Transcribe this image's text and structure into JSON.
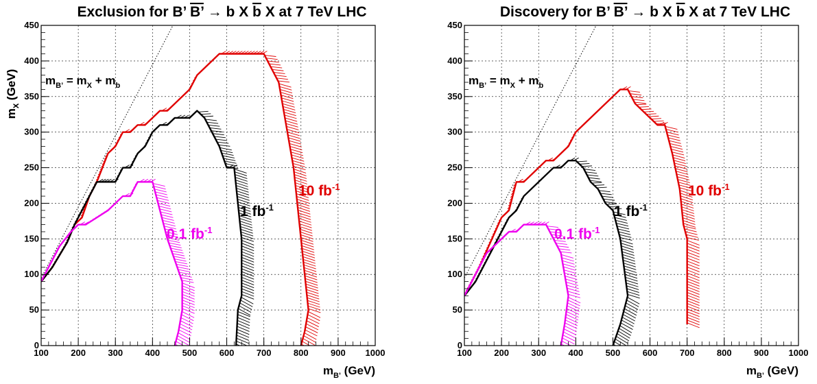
{
  "chart_data": [
    {
      "type": "line",
      "title": "Exclusion for B’ B̅’ → b X b̅ X at 7 TeV LHC",
      "xlabel": "m_B’ (GeV)",
      "ylabel": "m_X (GeV)",
      "xlim": [
        100,
        1000
      ],
      "ylim": [
        0,
        450
      ],
      "x_ticks": [
        100,
        200,
        300,
        400,
        500,
        600,
        700,
        800,
        900,
        1000
      ],
      "y_ticks": [
        0,
        50,
        100,
        150,
        200,
        250,
        300,
        350,
        400,
        450
      ],
      "grid": true,
      "diagonal_label": "m_B’ = m_X + m_b",
      "series": [
        {
          "name": "10 fb⁻¹",
          "color": "#e00000",
          "points": [
            [
              100,
              90
            ],
            [
              130,
              110
            ],
            [
              170,
              145
            ],
            [
              190,
              170
            ],
            [
              210,
              180
            ],
            [
              230,
              210
            ],
            [
              250,
              230
            ],
            [
              280,
              270
            ],
            [
              300,
              280
            ],
            [
              320,
              300
            ],
            [
              340,
              300
            ],
            [
              360,
              310
            ],
            [
              380,
              310
            ],
            [
              400,
              320
            ],
            [
              420,
              330
            ],
            [
              440,
              330
            ],
            [
              460,
              340
            ],
            [
              480,
              350
            ],
            [
              500,
              360
            ],
            [
              520,
              380
            ],
            [
              540,
              390
            ],
            [
              560,
              400
            ],
            [
              580,
              410
            ],
            [
              600,
              410
            ],
            [
              650,
              410
            ],
            [
              700,
              410
            ],
            [
              720,
              390
            ],
            [
              740,
              370
            ],
            [
              760,
              310
            ],
            [
              780,
              250
            ],
            [
              800,
              150
            ],
            [
              820,
              50
            ],
            [
              810,
              20
            ],
            [
              800,
              0
            ]
          ]
        },
        {
          "name": "1 fb⁻¹",
          "color": "#000000",
          "points": [
            [
              100,
              90
            ],
            [
              130,
              110
            ],
            [
              170,
              145
            ],
            [
              190,
              170
            ],
            [
              210,
              190
            ],
            [
              230,
              210
            ],
            [
              250,
              230
            ],
            [
              280,
              230
            ],
            [
              300,
              230
            ],
            [
              320,
              250
            ],
            [
              340,
              250
            ],
            [
              360,
              270
            ],
            [
              380,
              280
            ],
            [
              400,
              300
            ],
            [
              420,
              310
            ],
            [
              440,
              310
            ],
            [
              460,
              320
            ],
            [
              480,
              320
            ],
            [
              500,
              320
            ],
            [
              520,
              330
            ],
            [
              540,
              320
            ],
            [
              560,
              300
            ],
            [
              580,
              280
            ],
            [
              600,
              250
            ],
            [
              620,
              250
            ],
            [
              630,
              200
            ],
            [
              640,
              150
            ],
            [
              640,
              70
            ],
            [
              630,
              50
            ],
            [
              625,
              0
            ]
          ]
        },
        {
          "name": "0.1 fb⁻¹",
          "color": "#ee00ee",
          "points": [
            [
              100,
              90
            ],
            [
              120,
              110
            ],
            [
              150,
              140
            ],
            [
              180,
              160
            ],
            [
              200,
              170
            ],
            [
              220,
              170
            ],
            [
              250,
              180
            ],
            [
              280,
              190
            ],
            [
              300,
              200
            ],
            [
              320,
              210
            ],
            [
              340,
              210
            ],
            [
              360,
              230
            ],
            [
              380,
              230
            ],
            [
              400,
              230
            ],
            [
              420,
              190
            ],
            [
              440,
              150
            ],
            [
              460,
              120
            ],
            [
              480,
              90
            ],
            [
              480,
              50
            ],
            [
              470,
              20
            ],
            [
              460,
              0
            ]
          ]
        }
      ]
    },
    {
      "type": "line",
      "title": "Discovery for B’ B̅’ → b X b̅ X at 7 TeV LHC",
      "xlabel": "m_B’ (GeV)",
      "ylabel": "m_X (GeV)",
      "xlim": [
        100,
        1000
      ],
      "ylim": [
        0,
        450
      ],
      "x_ticks": [
        100,
        200,
        300,
        400,
        500,
        600,
        700,
        800,
        900,
        1000
      ],
      "y_ticks": [
        0,
        50,
        100,
        150,
        200,
        250,
        300,
        350,
        400,
        450
      ],
      "grid": true,
      "diagonal_label": "m_B’ = m_X + m_b",
      "series": [
        {
          "name": "10 fb⁻¹",
          "color": "#e00000",
          "points": [
            [
              100,
              70
            ],
            [
              140,
              110
            ],
            [
              170,
              145
            ],
            [
              200,
              180
            ],
            [
              220,
              190
            ],
            [
              240,
              230
            ],
            [
              260,
              230
            ],
            [
              280,
              240
            ],
            [
              300,
              250
            ],
            [
              320,
              260
            ],
            [
              340,
              260
            ],
            [
              360,
              270
            ],
            [
              380,
              280
            ],
            [
              400,
              300
            ],
            [
              420,
              310
            ],
            [
              440,
              320
            ],
            [
              460,
              330
            ],
            [
              480,
              340
            ],
            [
              500,
              350
            ],
            [
              520,
              360
            ],
            [
              540,
              360
            ],
            [
              560,
              340
            ],
            [
              580,
              330
            ],
            [
              600,
              320
            ],
            [
              620,
              310
            ],
            [
              640,
              310
            ],
            [
              660,
              270
            ],
            [
              680,
              220
            ],
            [
              690,
              170
            ],
            [
              700,
              150
            ],
            [
              700,
              100
            ],
            [
              700,
              30
            ]
          ]
        },
        {
          "name": "1 fb⁻¹",
          "color": "#000000",
          "points": [
            [
              100,
              70
            ],
            [
              130,
              90
            ],
            [
              160,
              120
            ],
            [
              180,
              140
            ],
            [
              200,
              160
            ],
            [
              220,
              180
            ],
            [
              240,
              190
            ],
            [
              260,
              210
            ],
            [
              280,
              220
            ],
            [
              300,
              230
            ],
            [
              320,
              240
            ],
            [
              340,
              250
            ],
            [
              360,
              250
            ],
            [
              380,
              260
            ],
            [
              400,
              260
            ],
            [
              420,
              250
            ],
            [
              440,
              230
            ],
            [
              460,
              220
            ],
            [
              480,
              200
            ],
            [
              500,
              190
            ],
            [
              520,
              150
            ],
            [
              530,
              110
            ],
            [
              540,
              70
            ],
            [
              520,
              30
            ],
            [
              500,
              0
            ]
          ]
        },
        {
          "name": "0.1 fb⁻¹",
          "color": "#ee00ee",
          "points": [
            [
              100,
              70
            ],
            [
              130,
              100
            ],
            [
              160,
              130
            ],
            [
              180,
              140
            ],
            [
              200,
              150
            ],
            [
              220,
              160
            ],
            [
              240,
              160
            ],
            [
              260,
              170
            ],
            [
              280,
              170
            ],
            [
              300,
              170
            ],
            [
              320,
              170
            ],
            [
              340,
              150
            ],
            [
              360,
              130
            ],
            [
              370,
              100
            ],
            [
              380,
              70
            ],
            [
              370,
              30
            ],
            [
              360,
              0
            ]
          ]
        }
      ]
    }
  ]
}
